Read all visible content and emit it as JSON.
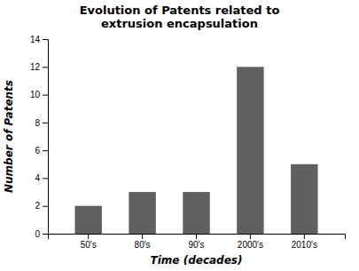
{
  "chart_data": {
    "type": "bar",
    "title": "Evolution of Patents related to\nextrusion encapsulation",
    "xlabel": "Time (decades)",
    "ylabel": "Number of Patents",
    "categories": [
      "50's",
      "80's",
      "90's",
      "2000's",
      "2010's"
    ],
    "values": [
      2,
      3,
      3,
      12,
      5
    ],
    "color": "#606060",
    "ylim": [
      0,
      14
    ],
    "yticks": [
      0,
      2,
      4,
      6,
      8,
      10,
      12,
      14
    ],
    "grid": false
  }
}
